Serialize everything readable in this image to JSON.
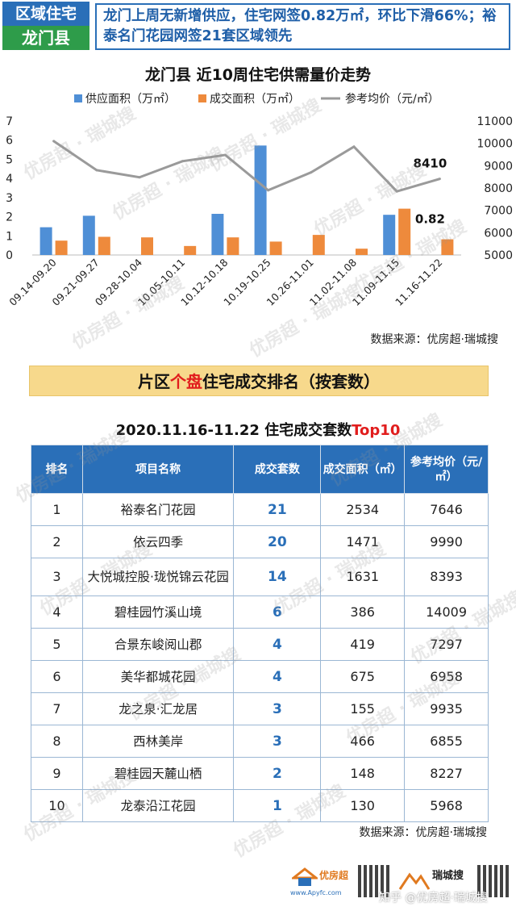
{
  "header": {
    "badge_top": "区域住宅",
    "badge_bottom": "龙门县",
    "headline": "龙门上周无新增供应，住宅网签0.82万㎡，环比下滑66%；裕泰名门花园网签21套区域领先"
  },
  "chart_data": {
    "type": "bar-line",
    "title": "龙门县 近10周住宅供需量价走势",
    "categories": [
      "09.14-09.20",
      "09.21-09.27",
      "09.28-10.04",
      "10.05-10.11",
      "10.12-10.18",
      "10.19-10.25",
      "10.26-11.01",
      "11.02-11.08",
      "11.09-11.15",
      "11.16-11.22"
    ],
    "series": [
      {
        "name": "供应面积（万㎡）",
        "type": "bar",
        "axis": "left",
        "color": "#4f8fd6",
        "values": [
          1.45,
          2.05,
          0,
          0,
          2.15,
          5.72,
          0,
          0,
          2.1,
          0
        ]
      },
      {
        "name": "成交面积（万㎡）",
        "type": "bar",
        "axis": "left",
        "color": "#ee8a3c",
        "values": [
          0.75,
          0.95,
          0.92,
          0.47,
          0.92,
          0.7,
          1.05,
          0.33,
          2.42,
          0.82
        ]
      },
      {
        "name": "参考均价（元/㎡）",
        "type": "line",
        "axis": "right",
        "color": "#9a9a9a",
        "values": [
          10100,
          8800,
          8480,
          9200,
          9480,
          7900,
          8700,
          9850,
          7850,
          8410
        ]
      }
    ],
    "ylim_left": [
      0,
      7
    ],
    "ylim_right": [
      5000,
      11000
    ],
    "left_ticks": [
      0,
      1,
      2,
      3,
      4,
      5,
      6,
      7
    ],
    "right_ticks": [
      5000,
      6000,
      7000,
      8000,
      9000,
      10000,
      11000
    ],
    "annotations": [
      {
        "text": "8410",
        "series": 2,
        "index": 9
      },
      {
        "text": "0.82",
        "series": 1,
        "index": 9
      }
    ],
    "legend_position": "top"
  },
  "source_label": "数据来源：优房超·瑞城搜",
  "banner": {
    "pre": "片区",
    "red": "个盘",
    "post": "住宅成交排名（按套数）"
  },
  "table_title": {
    "pre": "2020.11.16-11.22 住宅成交套数",
    "red": "Top10"
  },
  "table": {
    "headers": [
      "排名",
      "项目名称",
      "成交套数",
      "成交面积（㎡）",
      "参考均价（元/㎡）"
    ],
    "rows": [
      {
        "rank": "1",
        "name": "裕泰名门花园",
        "count": "21",
        "area": "2534",
        "price": "7646"
      },
      {
        "rank": "2",
        "name": "依云四季",
        "count": "20",
        "area": "1471",
        "price": "9990"
      },
      {
        "rank": "3",
        "name": "大悦城控股·珑悦锦云花园",
        "count": "14",
        "area": "1631",
        "price": "8393"
      },
      {
        "rank": "4",
        "name": "碧桂园竹溪山境",
        "count": "6",
        "area": "386",
        "price": "14009"
      },
      {
        "rank": "5",
        "name": "合景东峻阅山郡",
        "count": "4",
        "area": "419",
        "price": "7297"
      },
      {
        "rank": "6",
        "name": "美华都城花园",
        "count": "4",
        "area": "675",
        "price": "6958"
      },
      {
        "rank": "7",
        "name": "龙之泉·汇龙居",
        "count": "3",
        "area": "155",
        "price": "9935"
      },
      {
        "rank": "8",
        "name": "西林美岸",
        "count": "3",
        "area": "466",
        "price": "6855"
      },
      {
        "rank": "9",
        "name": "碧桂园天麓山栖",
        "count": "2",
        "area": "148",
        "price": "8227"
      },
      {
        "rank": "10",
        "name": "龙泰沿江花园",
        "count": "1",
        "area": "130",
        "price": "5968"
      }
    ]
  },
  "footer": {
    "logo1_name": "优房超",
    "logo1_url": "www.Apyfc.com",
    "logo2_name": "瑞城搜",
    "watermark_bottom": "知乎 @优房超·瑞城搜"
  },
  "watermark": "优房超 · 瑞城搜"
}
